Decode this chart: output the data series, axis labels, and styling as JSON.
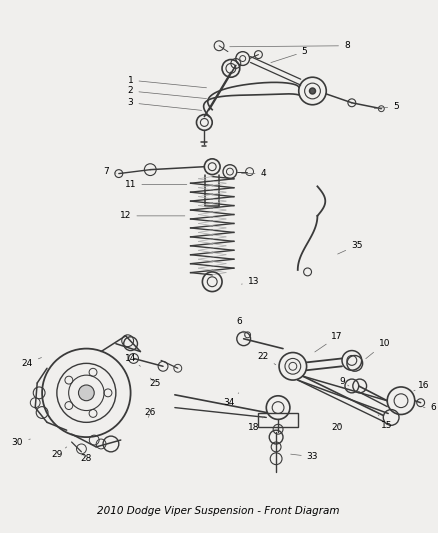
{
  "title": "2010 Dodge Viper Suspension - Front Diagram",
  "bg_color": "#f0efed",
  "line_color": "#3a3a3a",
  "label_color": "#000000",
  "label_fontsize": 6.5,
  "fig_width": 4.38,
  "fig_height": 5.33,
  "dpi": 100
}
